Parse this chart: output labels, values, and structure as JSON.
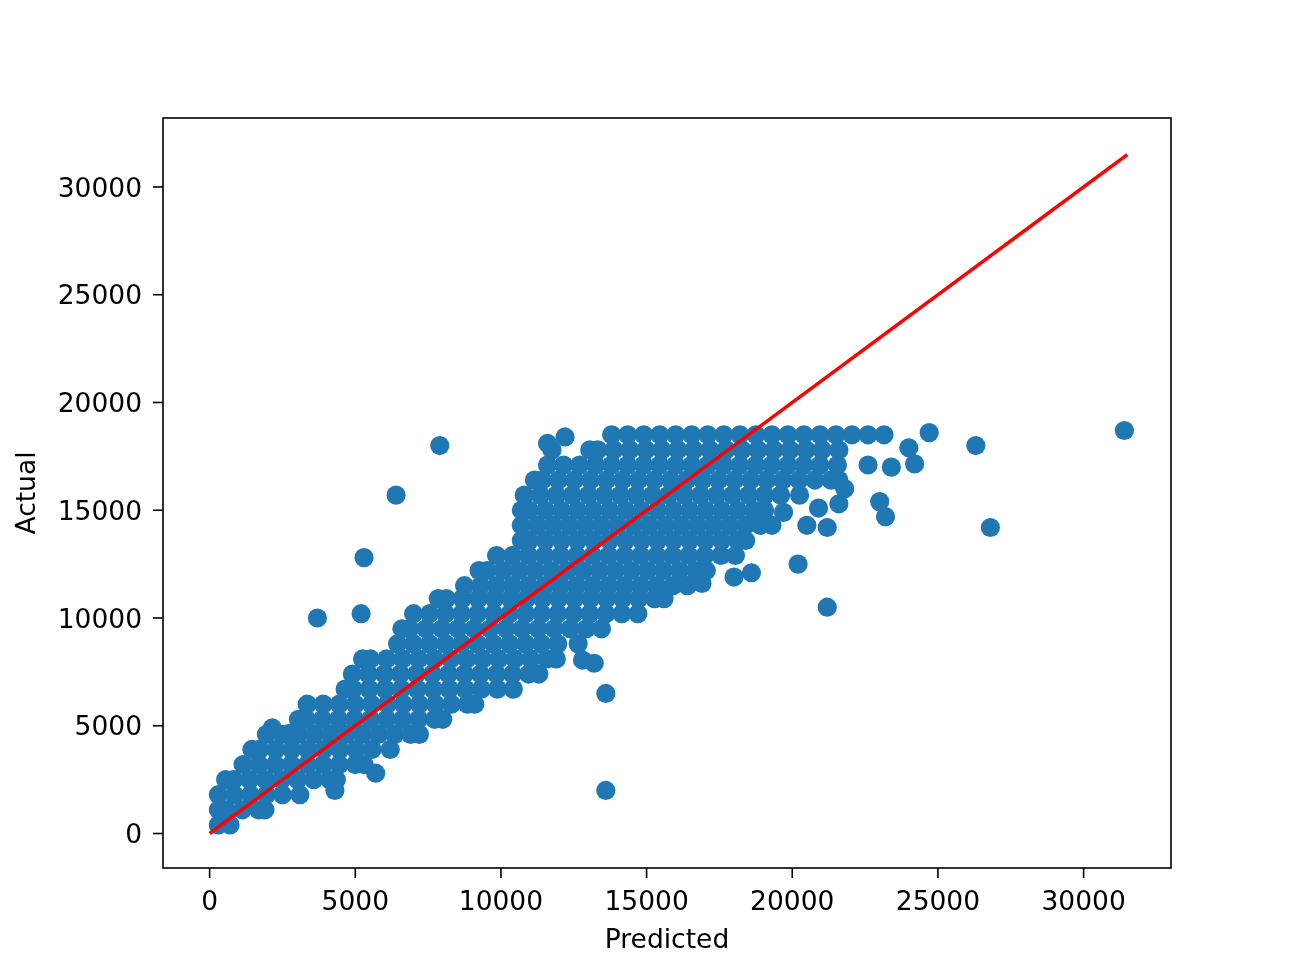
{
  "chart_data": {
    "type": "scatter",
    "xlabel": "Predicted",
    "ylabel": "Actual",
    "xlim": [
      -1600,
      33000
    ],
    "ylim": [
      -1600,
      33200
    ],
    "xticks": [
      0,
      5000,
      10000,
      15000,
      20000,
      25000,
      30000
    ],
    "yticks": [
      0,
      5000,
      10000,
      15000,
      20000,
      25000,
      30000
    ],
    "marker": "circle",
    "series": [
      {
        "color": "#1f77b4",
        "x": [
          300,
          700,
          300,
          575,
          1125,
          1675,
          1900,
          300,
          850,
          1400,
          1950,
          2500,
          3100,
          550,
          825,
          1375,
          1925,
          2475,
          3025,
          3575,
          4125,
          4350,
          1150,
          1700,
          2250,
          2800,
          3350,
          3900,
          4450,
          5000,
          5300,
          1450,
          1725,
          2275,
          2825,
          3375,
          3925,
          4475,
          5025,
          5575,
          6200,
          1950,
          2500,
          3050,
          3600,
          4150,
          4700,
          5250,
          5800,
          6350,
          6900,
          7200,
          3050,
          3325,
          3875,
          4425,
          4975,
          5525,
          6075,
          6625,
          7175,
          7725,
          8000,
          3350,
          3900,
          4450,
          5000,
          5550,
          6100,
          6650,
          7200,
          7750,
          8300,
          8850,
          9100,
          4650,
          4925,
          5475,
          6025,
          6575,
          7125,
          7675,
          8225,
          8775,
          9325,
          9875,
          10425,
          4900,
          5450,
          6000,
          6550,
          7100,
          7650,
          8200,
          8750,
          9300,
          9850,
          10400,
          10950,
          11300,
          5250,
          5525,
          6075,
          6625,
          7175,
          7725,
          8275,
          8825,
          9375,
          9925,
          10475,
          11025,
          11575,
          11900,
          6450,
          7000,
          7550,
          8100,
          8650,
          9200,
          9750,
          10300,
          10850,
          11400,
          11950,
          12650,
          6600,
          6875,
          7425,
          7975,
          8525,
          9075,
          9625,
          10175,
          10725,
          11275,
          11825,
          12375,
          12925,
          13450,
          7000,
          7550,
          8100,
          8650,
          9200,
          9750,
          10300,
          10850,
          11400,
          11950,
          12500,
          13050,
          13600,
          14150,
          14700,
          7850,
          8125,
          8675,
          9225,
          9775,
          10325,
          10875,
          11425,
          11975,
          12525,
          13075,
          13625,
          14175,
          14725,
          15275,
          15600,
          8750,
          9300,
          9850,
          10400,
          10950,
          11500,
          12050,
          12600,
          13150,
          13700,
          14250,
          14800,
          15350,
          15900,
          16400,
          9250,
          9525,
          10075,
          10625,
          11175,
          11725,
          12275,
          12825,
          13375,
          13925,
          14475,
          15025,
          15575,
          16125,
          16675,
          17050,
          9850,
          10400,
          10950,
          11500,
          12050,
          12600,
          13150,
          13700,
          14250,
          14800,
          15350,
          15900,
          16450,
          17000,
          17550,
          18050,
          10700,
          10975,
          11525,
          12075,
          12625,
          13175,
          13725,
          14275,
          14825,
          15375,
          15925,
          16475,
          17025,
          17575,
          18125,
          18400,
          10700,
          11250,
          11800,
          12350,
          12900,
          13450,
          14000,
          14550,
          15100,
          15650,
          16200,
          16750,
          17300,
          17850,
          18400,
          18900,
          10700,
          10975,
          11525,
          12075,
          12625,
          13175,
          13725,
          14275,
          14825,
          15375,
          15925,
          16475,
          17025,
          17575,
          18125,
          18675,
          19050,
          10800,
          11350,
          11900,
          12450,
          13000,
          13550,
          14100,
          14650,
          15200,
          15750,
          16300,
          16850,
          17400,
          17950,
          18500,
          19050,
          19600,
          20250,
          11150,
          11425,
          11975,
          12525,
          13075,
          13625,
          14175,
          14725,
          15275,
          15825,
          16375,
          16925,
          17475,
          18025,
          18575,
          19125,
          19675,
          20225,
          20775,
          21325,
          21600,
          11600,
          12150,
          12700,
          13250,
          13800,
          14350,
          14900,
          15450,
          16000,
          16550,
          17100,
          17650,
          18200,
          18750,
          19300,
          19850,
          20400,
          20950,
          21550,
          11750,
          13050,
          13325,
          13875,
          14425,
          14975,
          15525,
          16075,
          16625,
          17175,
          17725,
          18275,
          18825,
          19375,
          19925,
          20475,
          21025,
          21600,
          13800,
          14350,
          14900,
          15450,
          16000,
          16550,
          17100,
          17650,
          18200,
          18750,
          19300,
          19850,
          20400,
          20950,
          21500,
          22050,
          22600,
          23150,
          2150,
          2750,
          4300,
          5700,
          11600,
          12200,
          12800,
          13200,
          31400,
          26300,
          24700,
          24000,
          24200,
          22600,
          23400,
          23000,
          23200,
          26800,
          21200,
          20200,
          18600,
          13600,
          13600,
          7900,
          6400,
          5300,
          5200,
          3700,
          20500,
          21200,
          20900,
          21600,
          21800,
          18000,
          16900,
          19300,
          19700
        ],
        "values": [
          400,
          400,
          1100,
          1100,
          1100,
          1100,
          1100,
          1800,
          1800,
          1800,
          1800,
          1800,
          1800,
          2500,
          2500,
          2500,
          2500,
          2500,
          2500,
          2500,
          2500,
          2500,
          3200,
          3200,
          3200,
          3200,
          3200,
          3200,
          3200,
          3200,
          3200,
          3900,
          3900,
          3900,
          3900,
          3900,
          3900,
          3900,
          3900,
          3900,
          3900,
          4600,
          4600,
          4600,
          4600,
          4600,
          4600,
          4600,
          4600,
          4600,
          4600,
          4600,
          5300,
          5300,
          5300,
          5300,
          5300,
          5300,
          5300,
          5300,
          5300,
          5300,
          5300,
          6000,
          6000,
          6000,
          6000,
          6000,
          6000,
          6000,
          6000,
          6000,
          6000,
          6000,
          6000,
          6700,
          6700,
          6700,
          6700,
          6700,
          6700,
          6700,
          6700,
          6700,
          6700,
          6700,
          6700,
          7400,
          7400,
          7400,
          7400,
          7400,
          7400,
          7400,
          7400,
          7400,
          7400,
          7400,
          7400,
          7400,
          8100,
          8100,
          8100,
          8100,
          8100,
          8100,
          8100,
          8100,
          8100,
          8100,
          8100,
          8100,
          8100,
          8100,
          8800,
          8800,
          8800,
          8800,
          8800,
          8800,
          8800,
          8800,
          8800,
          8800,
          8800,
          8800,
          9500,
          9500,
          9500,
          9500,
          9500,
          9500,
          9500,
          9500,
          9500,
          9500,
          9500,
          9500,
          9500,
          9500,
          10200,
          10200,
          10200,
          10200,
          10200,
          10200,
          10200,
          10200,
          10200,
          10200,
          10200,
          10200,
          10200,
          10200,
          10200,
          10900,
          10900,
          10900,
          10900,
          10900,
          10900,
          10900,
          10900,
          10900,
          10900,
          10900,
          10900,
          10900,
          10900,
          10900,
          10900,
          11500,
          11500,
          11500,
          11500,
          11500,
          11500,
          11500,
          11500,
          11500,
          11500,
          11500,
          11500,
          11500,
          11500,
          11500,
          12200,
          12200,
          12200,
          12200,
          12200,
          12200,
          12200,
          12200,
          12200,
          12200,
          12200,
          12200,
          12200,
          12200,
          12200,
          12200,
          12900,
          12900,
          12900,
          12900,
          12900,
          12900,
          12900,
          12900,
          12900,
          12900,
          12900,
          12900,
          12900,
          12900,
          12900,
          12900,
          13600,
          13600,
          13600,
          13600,
          13600,
          13600,
          13600,
          13600,
          13600,
          13600,
          13600,
          13600,
          13600,
          13600,
          13600,
          13600,
          14300,
          14300,
          14300,
          14300,
          14300,
          14300,
          14300,
          14300,
          14300,
          14300,
          14300,
          14300,
          14300,
          14300,
          14300,
          14300,
          15000,
          15000,
          15000,
          15000,
          15000,
          15000,
          15000,
          15000,
          15000,
          15000,
          15000,
          15000,
          15000,
          15000,
          15000,
          15000,
          15000,
          15700,
          15700,
          15700,
          15700,
          15700,
          15700,
          15700,
          15700,
          15700,
          15700,
          15700,
          15700,
          15700,
          15700,
          15700,
          15700,
          15700,
          15700,
          16400,
          16400,
          16400,
          16400,
          16400,
          16400,
          16400,
          16400,
          16400,
          16400,
          16400,
          16400,
          16400,
          16400,
          16400,
          16400,
          16400,
          16400,
          16400,
          16400,
          16400,
          17100,
          17100,
          17100,
          17100,
          17100,
          17100,
          17100,
          17100,
          17100,
          17100,
          17100,
          17100,
          17100,
          17100,
          17100,
          17100,
          17100,
          17100,
          17100,
          17800,
          17800,
          17800,
          17800,
          17800,
          17800,
          17800,
          17800,
          17800,
          17800,
          17800,
          17800,
          17800,
          17800,
          17800,
          17800,
          17800,
          17800,
          18500,
          18500,
          18500,
          18500,
          18500,
          18500,
          18500,
          18500,
          18500,
          18500,
          18500,
          18500,
          18500,
          18500,
          18500,
          18500,
          18500,
          18500,
          4900,
          4650,
          2000,
          2800,
          18100,
          18400,
          8050,
          7900,
          18700,
          18000,
          18600,
          17900,
          17150,
          17100,
          17000,
          15400,
          14700,
          14200,
          10500,
          12500,
          12100,
          6500,
          2000,
          18000,
          15700,
          12800,
          10200,
          10000,
          14300,
          14200,
          15100,
          15300,
          16000,
          11900,
          11600,
          14300,
          14900
        ]
      },
      {
        "type": "line",
        "color": "#ff0000",
        "marker": "none",
        "line_style": "solid",
        "x": [
          0,
          31500
        ],
        "values": [
          0,
          31500
        ]
      }
    ]
  }
}
